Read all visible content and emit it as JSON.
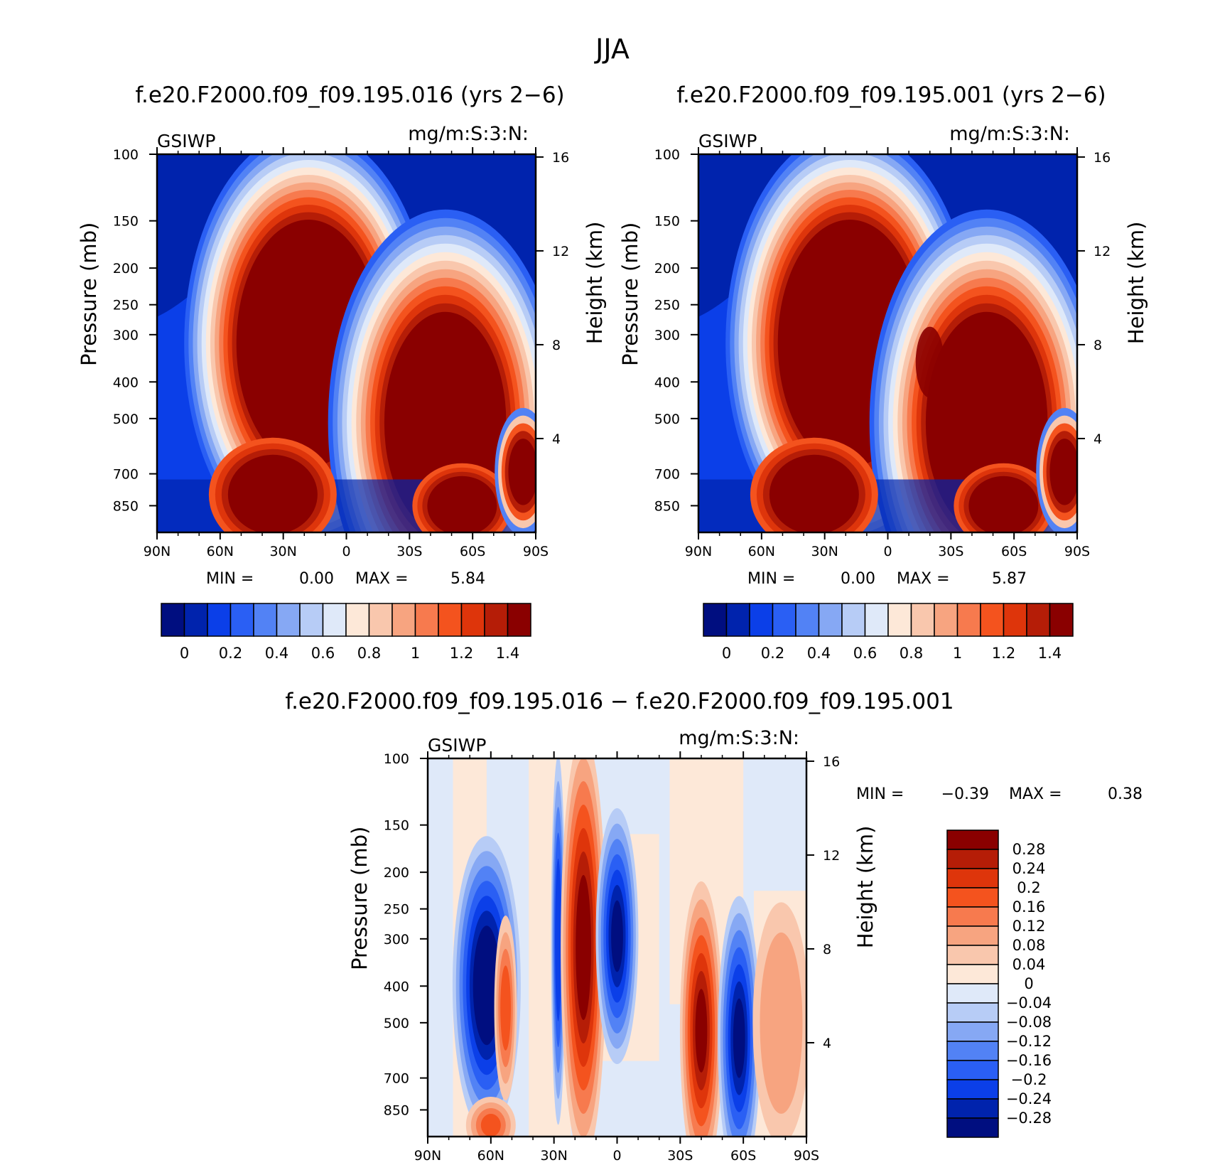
{
  "figure": {
    "title": "JJA"
  },
  "chart_data": [
    {
      "type": "heatmap",
      "id": "panel-top-left",
      "title": "f.e20.F2000.f09_f09.195.016 (yrs 2−6)",
      "variable": "GSIWP",
      "units": "mg/m:S:3:N:",
      "ylabel_left": "Pressure (mb)",
      "ylabel_right": "Height (km)",
      "x_ticks": [
        "90N",
        "60N",
        "30N",
        "0",
        "30S",
        "60S",
        "90S"
      ],
      "y_ticks": [
        "100",
        "150",
        "200",
        "250",
        "300",
        "400",
        "500",
        "700",
        "850"
      ],
      "y_ticks_values": [
        100,
        150,
        200,
        250,
        300,
        400,
        500,
        700,
        850
      ],
      "right_ticks": [
        "16",
        "12",
        "8",
        "4"
      ],
      "min_label": "MIN =",
      "min_value": "0.00",
      "max_label": "MAX =",
      "max_value": "5.84",
      "ylim": [
        100,
        1000
      ],
      "y_scale": "log",
      "colorbar": {
        "orientation": "horizontal",
        "labels": [
          "0",
          "0.2",
          "0.4",
          "0.6",
          "0.8",
          "1",
          "1.2",
          "1.4"
        ],
        "colors": [
          "#000e80",
          "#0023ad",
          "#0b3fe8",
          "#2a5ff4",
          "#5282f5",
          "#86a8f4",
          "#b7ccf6",
          "#dfe9f9",
          "#fde8d8",
          "#f9c7ad",
          "#f7a480",
          "#f77a4e",
          "#f4531e",
          "#de350b",
          "#b51d07",
          "#8a0000"
        ]
      }
    },
    {
      "type": "heatmap",
      "id": "panel-top-right",
      "title": "f.e20.F2000.f09_f09.195.001 (yrs 2−6)",
      "variable": "GSIWP",
      "units": "mg/m:S:3:N:",
      "ylabel_left": "Pressure (mb)",
      "ylabel_right": "Height (km)",
      "x_ticks": [
        "90N",
        "60N",
        "30N",
        "0",
        "30S",
        "60S",
        "90S"
      ],
      "y_ticks": [
        "100",
        "150",
        "200",
        "250",
        "300",
        "400",
        "500",
        "700",
        "850"
      ],
      "y_ticks_values": [
        100,
        150,
        200,
        250,
        300,
        400,
        500,
        700,
        850
      ],
      "right_ticks": [
        "16",
        "12",
        "8",
        "4"
      ],
      "min_label": "MIN =",
      "min_value": "0.00",
      "max_label": "MAX =",
      "max_value": "5.87",
      "ylim": [
        100,
        1000
      ],
      "y_scale": "log",
      "colorbar": {
        "orientation": "horizontal",
        "labels": [
          "0",
          "0.2",
          "0.4",
          "0.6",
          "0.8",
          "1",
          "1.2",
          "1.4"
        ],
        "colors": [
          "#000e80",
          "#0023ad",
          "#0b3fe8",
          "#2a5ff4",
          "#5282f5",
          "#86a8f4",
          "#b7ccf6",
          "#dfe9f9",
          "#fde8d8",
          "#f9c7ad",
          "#f7a480",
          "#f77a4e",
          "#f4531e",
          "#de350b",
          "#b51d07",
          "#8a0000"
        ]
      }
    },
    {
      "type": "heatmap",
      "id": "panel-bottom-diff",
      "title": "f.e20.F2000.f09_f09.195.016 − f.e20.F2000.f09_f09.195.001",
      "variable": "GSIWP",
      "units": "mg/m:S:3:N:",
      "ylabel_left": "Pressure (mb)",
      "ylabel_right": "Height (km)",
      "x_ticks": [
        "90N",
        "60N",
        "30N",
        "0",
        "30S",
        "60S",
        "90S"
      ],
      "y_ticks": [
        "100",
        "150",
        "200",
        "250",
        "300",
        "400",
        "500",
        "700",
        "850"
      ],
      "y_ticks_values": [
        100,
        150,
        200,
        250,
        300,
        400,
        500,
        700,
        850
      ],
      "right_ticks": [
        "16",
        "12",
        "8",
        "4"
      ],
      "min_label": "MIN =",
      "min_value": "−0.39",
      "max_label": "MAX =",
      "max_value": "0.38",
      "ylim": [
        100,
        1000
      ],
      "y_scale": "log",
      "colorbar": {
        "orientation": "vertical",
        "labels": [
          "0.28",
          "0.24",
          "0.2",
          "0.16",
          "0.12",
          "0.08",
          "0.04",
          "0",
          "−0.04",
          "−0.08",
          "−0.12",
          "−0.16",
          "−0.2",
          "−0.24",
          "−0.28"
        ],
        "colors": [
          "#8a0000",
          "#b51d07",
          "#de350b",
          "#f4531e",
          "#f77a4e",
          "#f7a480",
          "#f9c7ad",
          "#fde8d8",
          "#dfe9f9",
          "#b7ccf6",
          "#86a8f4",
          "#5282f5",
          "#2a5ff4",
          "#0b3fe8",
          "#0023ad",
          "#000e80"
        ]
      }
    }
  ]
}
